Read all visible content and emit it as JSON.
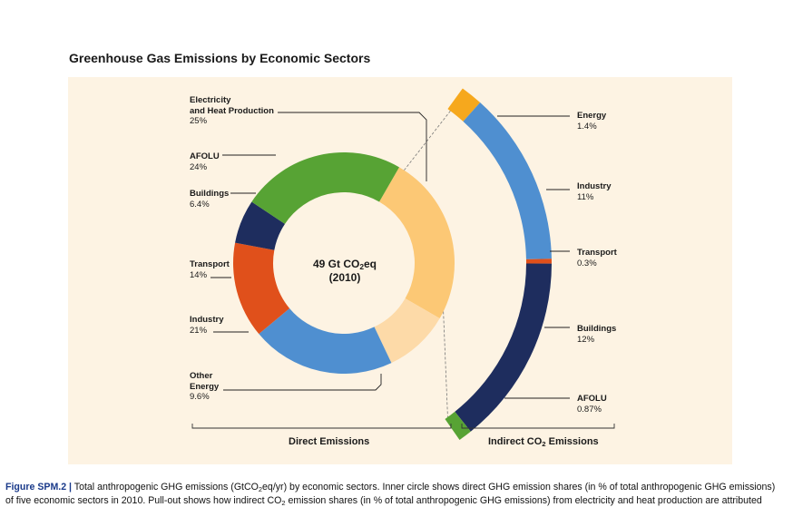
{
  "figure": {
    "title": "Greenhouse Gas Emissions by Economic Sectors",
    "center_line1": "49 Gt CO",
    "center_sub": "2",
    "center_line1b": "eq",
    "center_line2": "(2010)",
    "direct_label": "Direct Emissions",
    "indirect_label_a": "Indirect CO",
    "indirect_label_sub": "2",
    "indirect_label_b": " Emissions"
  },
  "chart_data": [
    {
      "type": "pie",
      "title": "Direct Emissions",
      "subtitle": "49 Gt CO2eq (2010)",
      "unit": "% of total anthropogenic GHG emissions",
      "slices": [
        {
          "name": "Electricity\nand Heat Production",
          "value": 25,
          "label": "25%",
          "color": "#fcc875"
        },
        {
          "name": "Other\nEnergy",
          "value": 9.6,
          "label": "9.6%",
          "color": "#fddaa8"
        },
        {
          "name": "Industry",
          "value": 21,
          "label": "21%",
          "color": "#4f8fd0"
        },
        {
          "name": "Transport",
          "value": 14,
          "label": "14%",
          "color": "#e0501b"
        },
        {
          "name": "Buildings",
          "value": 6.4,
          "label": "6.4%",
          "color": "#1e2d5e"
        },
        {
          "name": "AFOLU",
          "value": 24,
          "label": "24%",
          "color": "#57a334"
        }
      ]
    },
    {
      "type": "pie",
      "title": "Indirect CO2 Emissions",
      "unit": "% of total anthropogenic GHG emissions",
      "slices": [
        {
          "name": "Energy",
          "value": 1.4,
          "label": "1.4%",
          "color": "#f6a81d"
        },
        {
          "name": "Industry",
          "value": 11,
          "label": "11%",
          "color": "#4f8fd0"
        },
        {
          "name": "Transport",
          "value": 0.3,
          "label": "0.3%",
          "color": "#e0501b"
        },
        {
          "name": "Buildings",
          "value": 12,
          "label": "12%",
          "color": "#1e2d5e"
        },
        {
          "name": "AFOLU",
          "value": 0.87,
          "label": "0.87%",
          "color": "#57a334"
        }
      ]
    }
  ],
  "caption": {
    "label": "Figure SPM.2 |",
    "line1a": " Total anthropogenic GHG emissions (GtCO",
    "line1sub": "2",
    "line1b": "eq/yr) by economic sectors. Inner circle shows direct GHG emission shares (in % of total anthropogenic GHG emissions)",
    "line2a": "of five economic sectors in 2010. Pull-out shows how indirect CO",
    "line2sub": "2",
    "line2b": " emission shares (in % of total anthropogenic GHG emissions) from electricity and heat production are attributed"
  }
}
